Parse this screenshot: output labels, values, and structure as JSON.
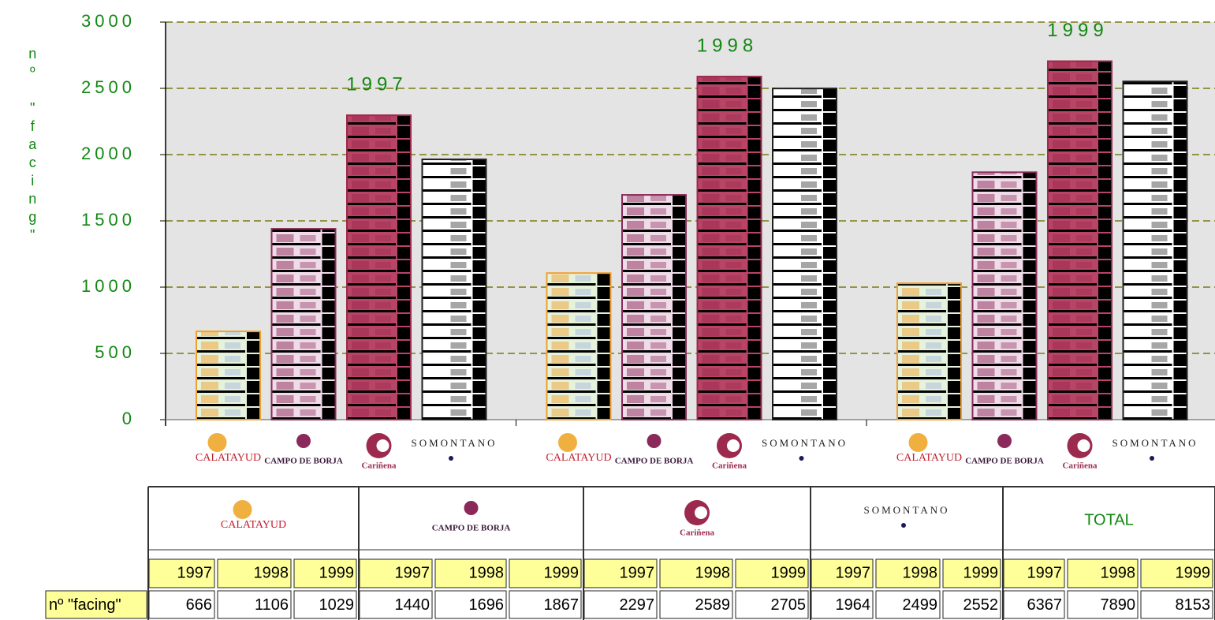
{
  "chart_data": {
    "type": "bar",
    "y_label": "nº \"facing\"",
    "categories": [
      "1997",
      "1998",
      "1999"
    ],
    "series": [
      {
        "name": "CALATAYUD",
        "color": "#f0a030",
        "values": [
          666,
          1106,
          1029
        ]
      },
      {
        "name": "CAMPO DE BORJA",
        "color": "#8b2a5a",
        "values": [
          1440,
          1696,
          1867
        ]
      },
      {
        "name": "Cariñena",
        "color": "#9c2a4e",
        "values": [
          2297,
          2589,
          2705
        ]
      },
      {
        "name": "SOMONTANO",
        "color": "#202020",
        "values": [
          1964,
          2499,
          2552
        ]
      }
    ],
    "ylim": [
      0,
      3000
    ],
    "yticks": [
      0,
      500,
      1000,
      1500,
      2000,
      2500,
      3000
    ],
    "grid": true,
    "table": {
      "row_label": "nº \"facing\"",
      "total": {
        "name": "TOTAL",
        "values": [
          6367,
          7890,
          8153
        ]
      }
    }
  }
}
